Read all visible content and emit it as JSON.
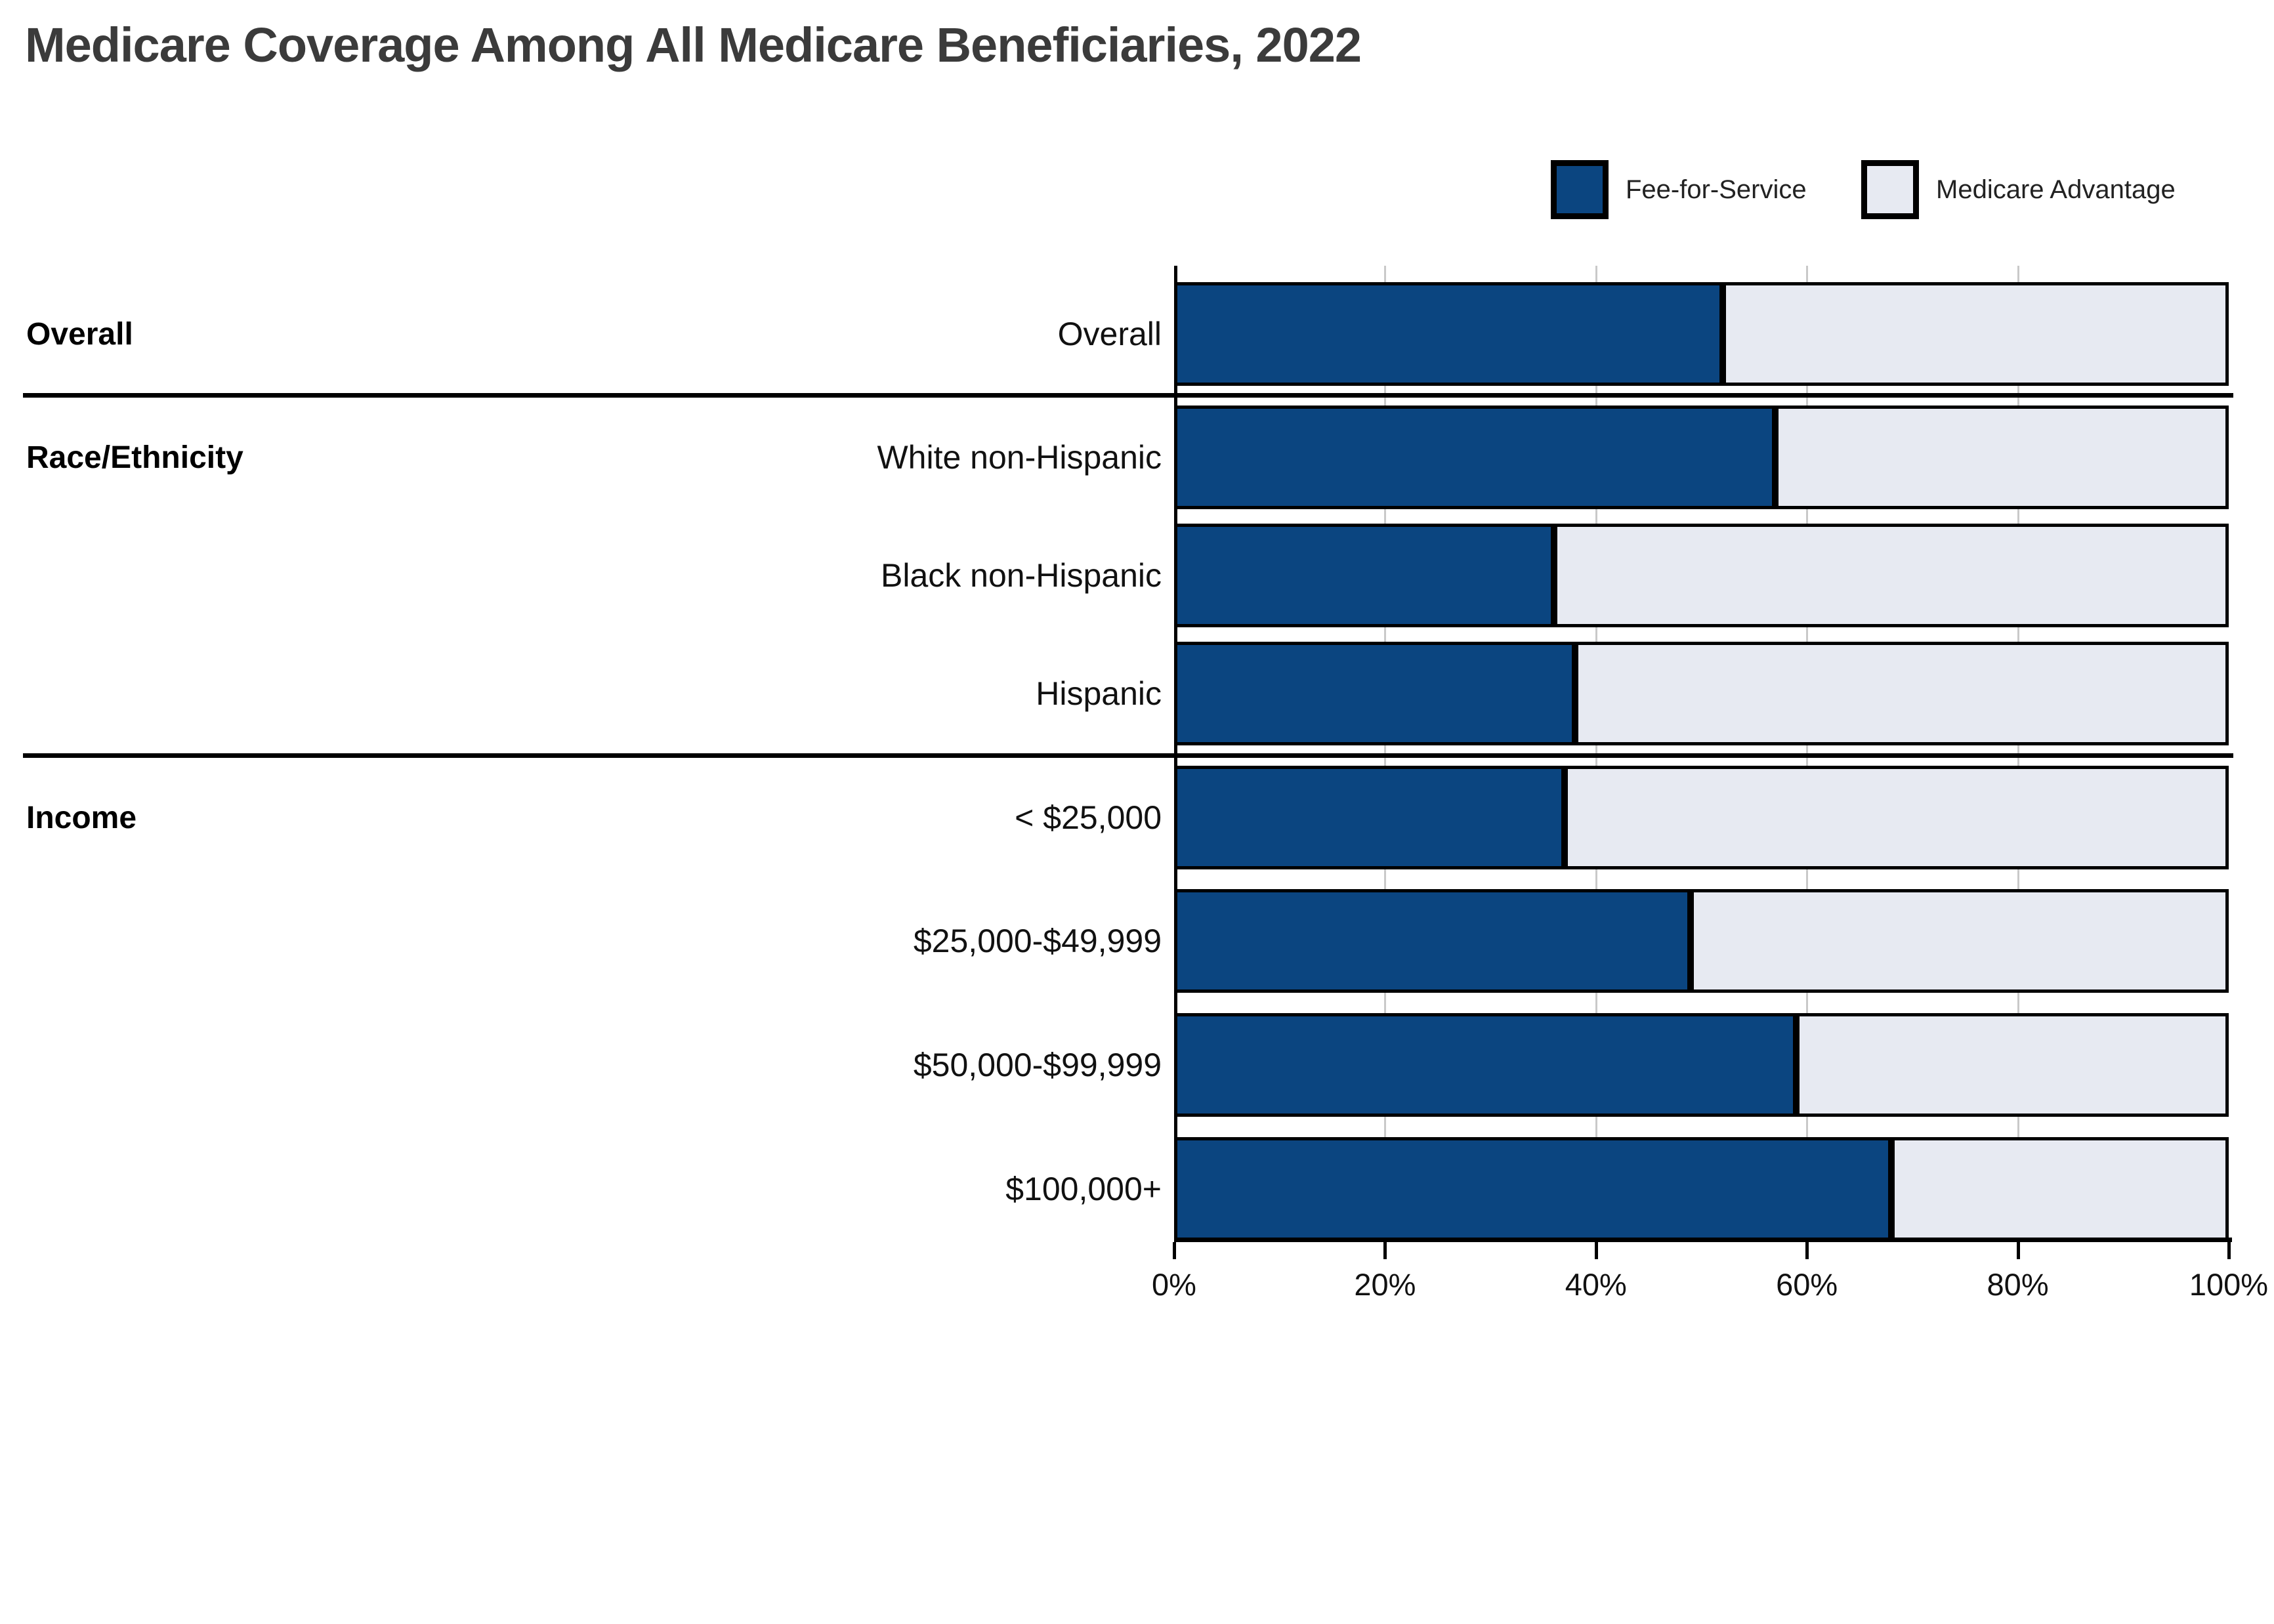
{
  "title": "Medicare Coverage Among All Medicare Beneficiaries, 2022",
  "colors": {
    "fee_for_service": "#0B4580",
    "medicare_advantage": "#E7EAF2",
    "bar_border": "#000000",
    "axis": "#000000",
    "gridline": "#C9C9C9",
    "title_text": "#3B3B3B",
    "label_text": "#111111"
  },
  "legend": {
    "items": [
      {
        "label": "Fee-for-Service",
        "color_key": "fee_for_service"
      },
      {
        "label": "Medicare Advantage",
        "color_key": "medicare_advantage"
      }
    ]
  },
  "chart_data": {
    "type": "bar",
    "stacked": true,
    "orientation": "horizontal",
    "title": "Medicare Coverage Among All Medicare Beneficiaries, 2022",
    "categories": [
      "Overall",
      "White non-Hispanic",
      "Black non-Hispanic",
      "Hispanic",
      "< $25,000",
      "$25,000-$49,999",
      "$50,000-$99,999",
      "$100,000+"
    ],
    "groups": [
      {
        "label": "Overall",
        "start": 0,
        "count": 1
      },
      {
        "label": "Race/Ethnicity",
        "start": 1,
        "count": 3
      },
      {
        "label": "Income",
        "start": 4,
        "count": 4
      }
    ],
    "series": [
      {
        "name": "Fee-for-Service",
        "color_key": "fee_for_service",
        "values": [
          52,
          57,
          36,
          38,
          37,
          49,
          59,
          68
        ]
      },
      {
        "name": "Medicare Advantage",
        "color_key": "medicare_advantage",
        "values": [
          48,
          43,
          64,
          62,
          63,
          51,
          41,
          32
        ]
      }
    ],
    "x_axis": {
      "min": 0,
      "max": 100,
      "unit": "%",
      "ticks": [
        {
          "label": "0%",
          "value": 0
        },
        {
          "label": "20%",
          "value": 20
        },
        {
          "label": "40%",
          "value": 40
        },
        {
          "label": "60%",
          "value": 60
        },
        {
          "label": "80%",
          "value": 80
        },
        {
          "label": "100%",
          "value": 100
        }
      ],
      "gridline_values": [
        20,
        40,
        60,
        80
      ]
    },
    "legend_position": "top-right",
    "grid": "vertical-only"
  }
}
